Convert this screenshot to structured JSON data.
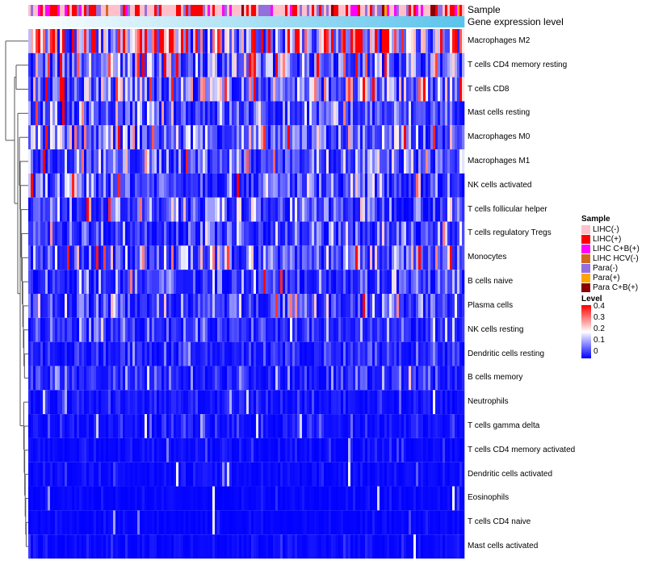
{
  "annotation_labels": {
    "sample": "Sample",
    "gene": "Gene expression level"
  },
  "legend": {
    "sample_title": "Sample",
    "sample_items": [
      {
        "label": "LIHC(-)",
        "color": "#FFC0CB"
      },
      {
        "label": "LIHC(+)",
        "color": "#FF0000"
      },
      {
        "label": "LIHC C+B(+)",
        "color": "#FF00FF"
      },
      {
        "label": "LIHC HCV(-)",
        "color": "#D2691E"
      },
      {
        "label": "Para(-)",
        "color": "#9370DB"
      },
      {
        "label": "Para(+)",
        "color": "#FFA500"
      },
      {
        "label": "Para C+B(+)",
        "color": "#8B0000"
      }
    ],
    "level_title": "Level",
    "level_ticks": [
      "0.4",
      "0.3",
      "0.2",
      "0.1",
      "0"
    ]
  },
  "chart_data": {
    "type": "heatmap",
    "title": "",
    "color_scale": {
      "min": 0,
      "mid": 0.2,
      "max": 0.4,
      "low": "#0000FF",
      "midcolor": "#FFFFFF",
      "high": "#FF0000"
    },
    "gene_expression_gradient": [
      "#FFFFFF",
      "#5BC3EB"
    ],
    "rows": [
      "Macrophages M2",
      "T cells CD4 memory resting",
      "T cells CD8",
      "Mast cells resting",
      "Macrophages M0",
      "Macrophages M1",
      "NK cells activated",
      "T cells follicular helper",
      "T cells regulatory  Tregs",
      "Monocytes",
      "B cells naive",
      "Plasma cells",
      "NK cells resting",
      "Dendritic cells resting",
      "B cells memory",
      "Neutrophils",
      "T cells gamma delta",
      "T cells CD4 memory activated",
      "Dendritic cells activated",
      "Eosinophils",
      "T cells CD4 naive",
      "Mast cells activated"
    ],
    "row_mean_level": [
      0.25,
      0.12,
      0.13,
      0.07,
      0.1,
      0.09,
      0.08,
      0.07,
      0.06,
      0.09,
      0.06,
      0.06,
      0.04,
      0.03,
      0.04,
      0.02,
      0.02,
      0.01,
      0.01,
      0.005,
      0.005,
      0.01
    ],
    "n_columns": 180,
    "legend_position": "right"
  }
}
